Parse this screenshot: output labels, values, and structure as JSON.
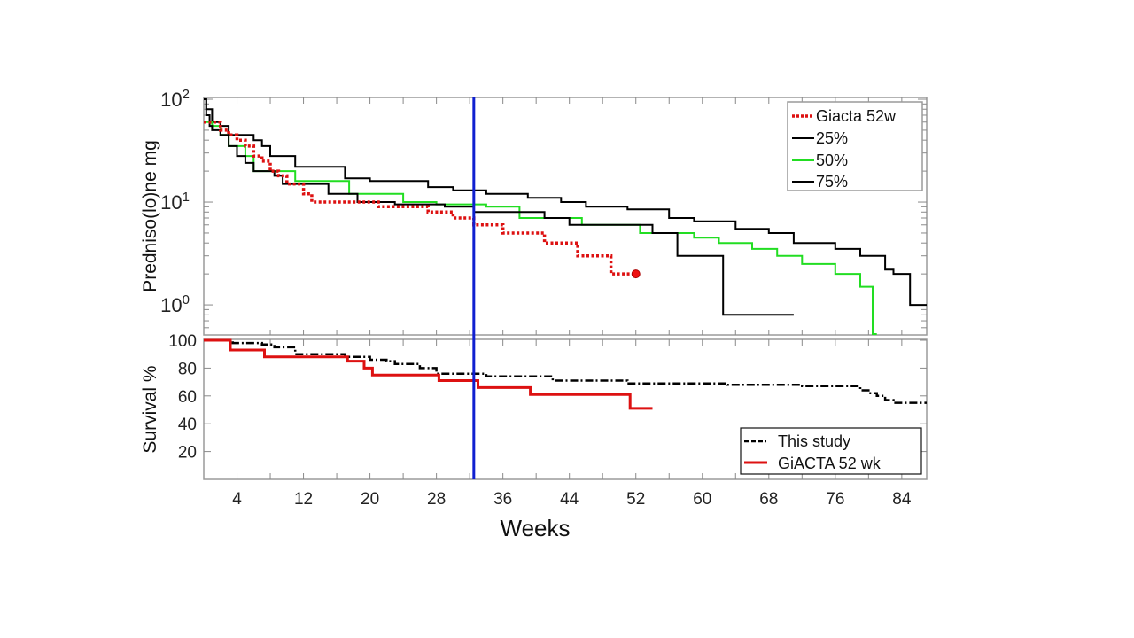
{
  "chart_data": [
    {
      "type": "line",
      "panel": "top",
      "title": "",
      "xlabel": "",
      "ylabel": "Predniso(lo)ne mg",
      "yscale": "log",
      "ylim": [
        0.51,
        100
      ],
      "xlim": [
        0,
        87
      ],
      "ytick_labels": [
        {
          "base": "10",
          "exp": "2",
          "value": 100
        },
        {
          "base": "10",
          "exp": "1",
          "value": 10
        },
        {
          "base": "10",
          "exp": "0",
          "value": 1
        }
      ],
      "legend": {
        "placement": "top-right",
        "entries": [
          "Giacta 52w",
          "25%",
          "50%",
          "75%"
        ]
      },
      "vline_week": 32.5,
      "series": [
        {
          "name": "Giacta 52w",
          "color": "#dd1111",
          "style": "dotted",
          "end_marker": true,
          "points": [
            [
              0,
              60
            ],
            [
              1,
              60
            ],
            [
              2,
              50
            ],
            [
              3,
              45
            ],
            [
              4,
              40
            ],
            [
              5,
              35
            ],
            [
              6,
              28
            ],
            [
              7,
              25
            ],
            [
              8,
              20
            ],
            [
              9,
              18
            ],
            [
              10,
              15
            ],
            [
              11,
              15
            ],
            [
              12,
              12
            ],
            [
              13,
              10
            ],
            [
              20,
              10
            ],
            [
              21,
              9
            ],
            [
              26,
              9
            ],
            [
              27,
              8
            ],
            [
              29,
              8
            ],
            [
              30,
              7
            ],
            [
              32,
              7
            ],
            [
              32.5,
              6
            ],
            [
              33,
              6
            ],
            [
              35,
              6
            ],
            [
              36,
              5
            ],
            [
              40,
              5
            ],
            [
              41,
              4
            ],
            [
              44,
              4
            ],
            [
              45,
              3
            ],
            [
              48,
              3
            ],
            [
              49,
              2
            ],
            [
              50,
              2
            ],
            [
              52,
              2
            ]
          ]
        },
        {
          "name": "25%",
          "color": "#000000",
          "style": "solid",
          "points": [
            [
              0,
              100
            ],
            [
              0.3,
              70
            ],
            [
              0.7,
              55
            ],
            [
              1,
              50
            ],
            [
              2,
              45
            ],
            [
              3,
              35
            ],
            [
              4,
              28
            ],
            [
              5,
              24
            ],
            [
              6,
              20
            ],
            [
              8,
              20
            ],
            [
              8.5,
              18
            ],
            [
              9.5,
              15
            ],
            [
              14,
              15
            ],
            [
              15,
              12
            ],
            [
              18,
              12
            ],
            [
              18.5,
              10
            ],
            [
              22,
              10
            ],
            [
              23,
              9.5
            ],
            [
              28,
              9.5
            ],
            [
              29,
              9
            ],
            [
              32,
              9
            ],
            [
              32.5,
              8
            ],
            [
              40,
              8
            ],
            [
              41,
              7
            ],
            [
              43,
              7
            ],
            [
              44,
              6
            ],
            [
              53,
              6
            ],
            [
              54,
              5
            ],
            [
              56,
              5
            ],
            [
              57,
              3
            ],
            [
              62,
              3
            ],
            [
              62.5,
              0.8
            ],
            [
              71,
              0.8
            ]
          ]
        },
        {
          "name": "50%",
          "color": "#22dd22",
          "style": "solid",
          "points": [
            [
              0,
              60
            ],
            [
              1,
              55
            ],
            [
              2,
              45
            ],
            [
              3,
              35
            ],
            [
              4,
              35
            ],
            [
              5,
              28
            ],
            [
              6,
              20
            ],
            [
              10,
              20
            ],
            [
              11,
              16
            ],
            [
              17,
              16
            ],
            [
              17.5,
              12
            ],
            [
              23,
              12
            ],
            [
              24,
              10
            ],
            [
              27,
              10
            ],
            [
              28,
              9.5
            ],
            [
              33,
              9.5
            ],
            [
              34,
              9
            ],
            [
              37,
              9
            ],
            [
              38,
              7
            ],
            [
              45,
              7
            ],
            [
              45.5,
              6
            ],
            [
              52,
              6
            ],
            [
              52.5,
              5
            ],
            [
              58,
              5
            ],
            [
              59,
              4.5
            ],
            [
              61,
              4.5
            ],
            [
              62,
              4
            ],
            [
              65,
              4
            ],
            [
              66,
              3.5
            ],
            [
              68,
              3.5
            ],
            [
              69,
              3
            ],
            [
              71,
              3
            ],
            [
              72,
              2.5
            ],
            [
              75,
              2.5
            ],
            [
              76,
              2
            ],
            [
              78,
              2
            ],
            [
              79,
              1.5
            ],
            [
              80,
              1.5
            ],
            [
              80.5,
              0.52
            ],
            [
              81,
              0.52
            ]
          ]
        },
        {
          "name": "75%",
          "color": "#000000",
          "style": "solid",
          "points": [
            [
              0,
              100
            ],
            [
              0.3,
              80
            ],
            [
              1,
              60
            ],
            [
              2,
              55
            ],
            [
              3,
              45
            ],
            [
              5,
              45
            ],
            [
              6,
              40
            ],
            [
              7,
              35
            ],
            [
              8,
              28
            ],
            [
              10,
              28
            ],
            [
              11,
              22
            ],
            [
              16,
              22
            ],
            [
              17,
              17
            ],
            [
              19,
              17
            ],
            [
              20,
              16
            ],
            [
              26,
              16
            ],
            [
              27,
              14
            ],
            [
              29,
              14
            ],
            [
              30,
              13
            ],
            [
              33,
              13
            ],
            [
              34,
              12
            ],
            [
              38,
              12
            ],
            [
              39,
              11
            ],
            [
              42,
              11
            ],
            [
              43,
              10
            ],
            [
              45,
              10
            ],
            [
              46,
              9
            ],
            [
              50,
              9
            ],
            [
              51,
              8.5
            ],
            [
              55,
              8.5
            ],
            [
              56,
              7
            ],
            [
              58,
              7
            ],
            [
              59,
              6.5
            ],
            [
              63,
              6.5
            ],
            [
              64,
              5.5
            ],
            [
              67,
              5.5
            ],
            [
              68,
              5
            ],
            [
              70,
              5
            ],
            [
              71,
              4
            ],
            [
              75,
              4
            ],
            [
              76,
              3.5
            ],
            [
              78,
              3.5
            ],
            [
              79,
              3
            ],
            [
              81,
              3
            ],
            [
              82,
              2.2
            ],
            [
              83,
              2
            ],
            [
              84,
              2
            ],
            [
              85,
              1
            ],
            [
              87,
              1
            ]
          ]
        }
      ]
    },
    {
      "type": "line",
      "panel": "bottom",
      "title": "",
      "xlabel": "Weeks",
      "ylabel": "Survival %",
      "ylim": [
        0,
        100
      ],
      "xlim": [
        0,
        87
      ],
      "yticks": [
        20,
        40,
        60,
        80,
        100
      ],
      "xticks": [
        4,
        12,
        20,
        28,
        36,
        44,
        52,
        60,
        68,
        76,
        84
      ],
      "legend": {
        "placement": "bottom-right",
        "entries": [
          "This study",
          "GiACTA 52 wk"
        ]
      },
      "vline_week": 32.5,
      "series": [
        {
          "name": "This study",
          "color": "#000000",
          "style": "dashdot",
          "points": [
            [
              0,
              100
            ],
            [
              3,
              100
            ],
            [
              3.5,
              98
            ],
            [
              7,
              97
            ],
            [
              8.5,
              95
            ],
            [
              11,
              90
            ],
            [
              16,
              90
            ],
            [
              17,
              88
            ],
            [
              20,
              86
            ],
            [
              22,
              85
            ],
            [
              23,
              83
            ],
            [
              26,
              80
            ],
            [
              28,
              76
            ],
            [
              33,
              76
            ],
            [
              34,
              74
            ],
            [
              41,
              74
            ],
            [
              42,
              71
            ],
            [
              50,
              71
            ],
            [
              51,
              69
            ],
            [
              62,
              69
            ],
            [
              63,
              68
            ],
            [
              71,
              68
            ],
            [
              72,
              67
            ],
            [
              78,
              67
            ],
            [
              79,
              64
            ],
            [
              80,
              62
            ],
            [
              81,
              60
            ],
            [
              82,
              57
            ],
            [
              83,
              55
            ],
            [
              87,
              55
            ]
          ]
        },
        {
          "name": "GiACTA 52 wk",
          "color": "#dd1111",
          "style": "solid",
          "points": [
            [
              0,
              100
            ],
            [
              3,
              100
            ],
            [
              3.2,
              93
            ],
            [
              7,
              93
            ],
            [
              7.3,
              88
            ],
            [
              17,
              88
            ],
            [
              17.3,
              85
            ],
            [
              19,
              85
            ],
            [
              19.3,
              80
            ],
            [
              20,
              80
            ],
            [
              20.3,
              75
            ],
            [
              28,
              75
            ],
            [
              28.3,
              71
            ],
            [
              32.5,
              71
            ],
            [
              33,
              66
            ],
            [
              39,
              66
            ],
            [
              39.3,
              61
            ],
            [
              51,
              61
            ],
            [
              51.3,
              51
            ],
            [
              54,
              51
            ]
          ]
        }
      ]
    }
  ]
}
